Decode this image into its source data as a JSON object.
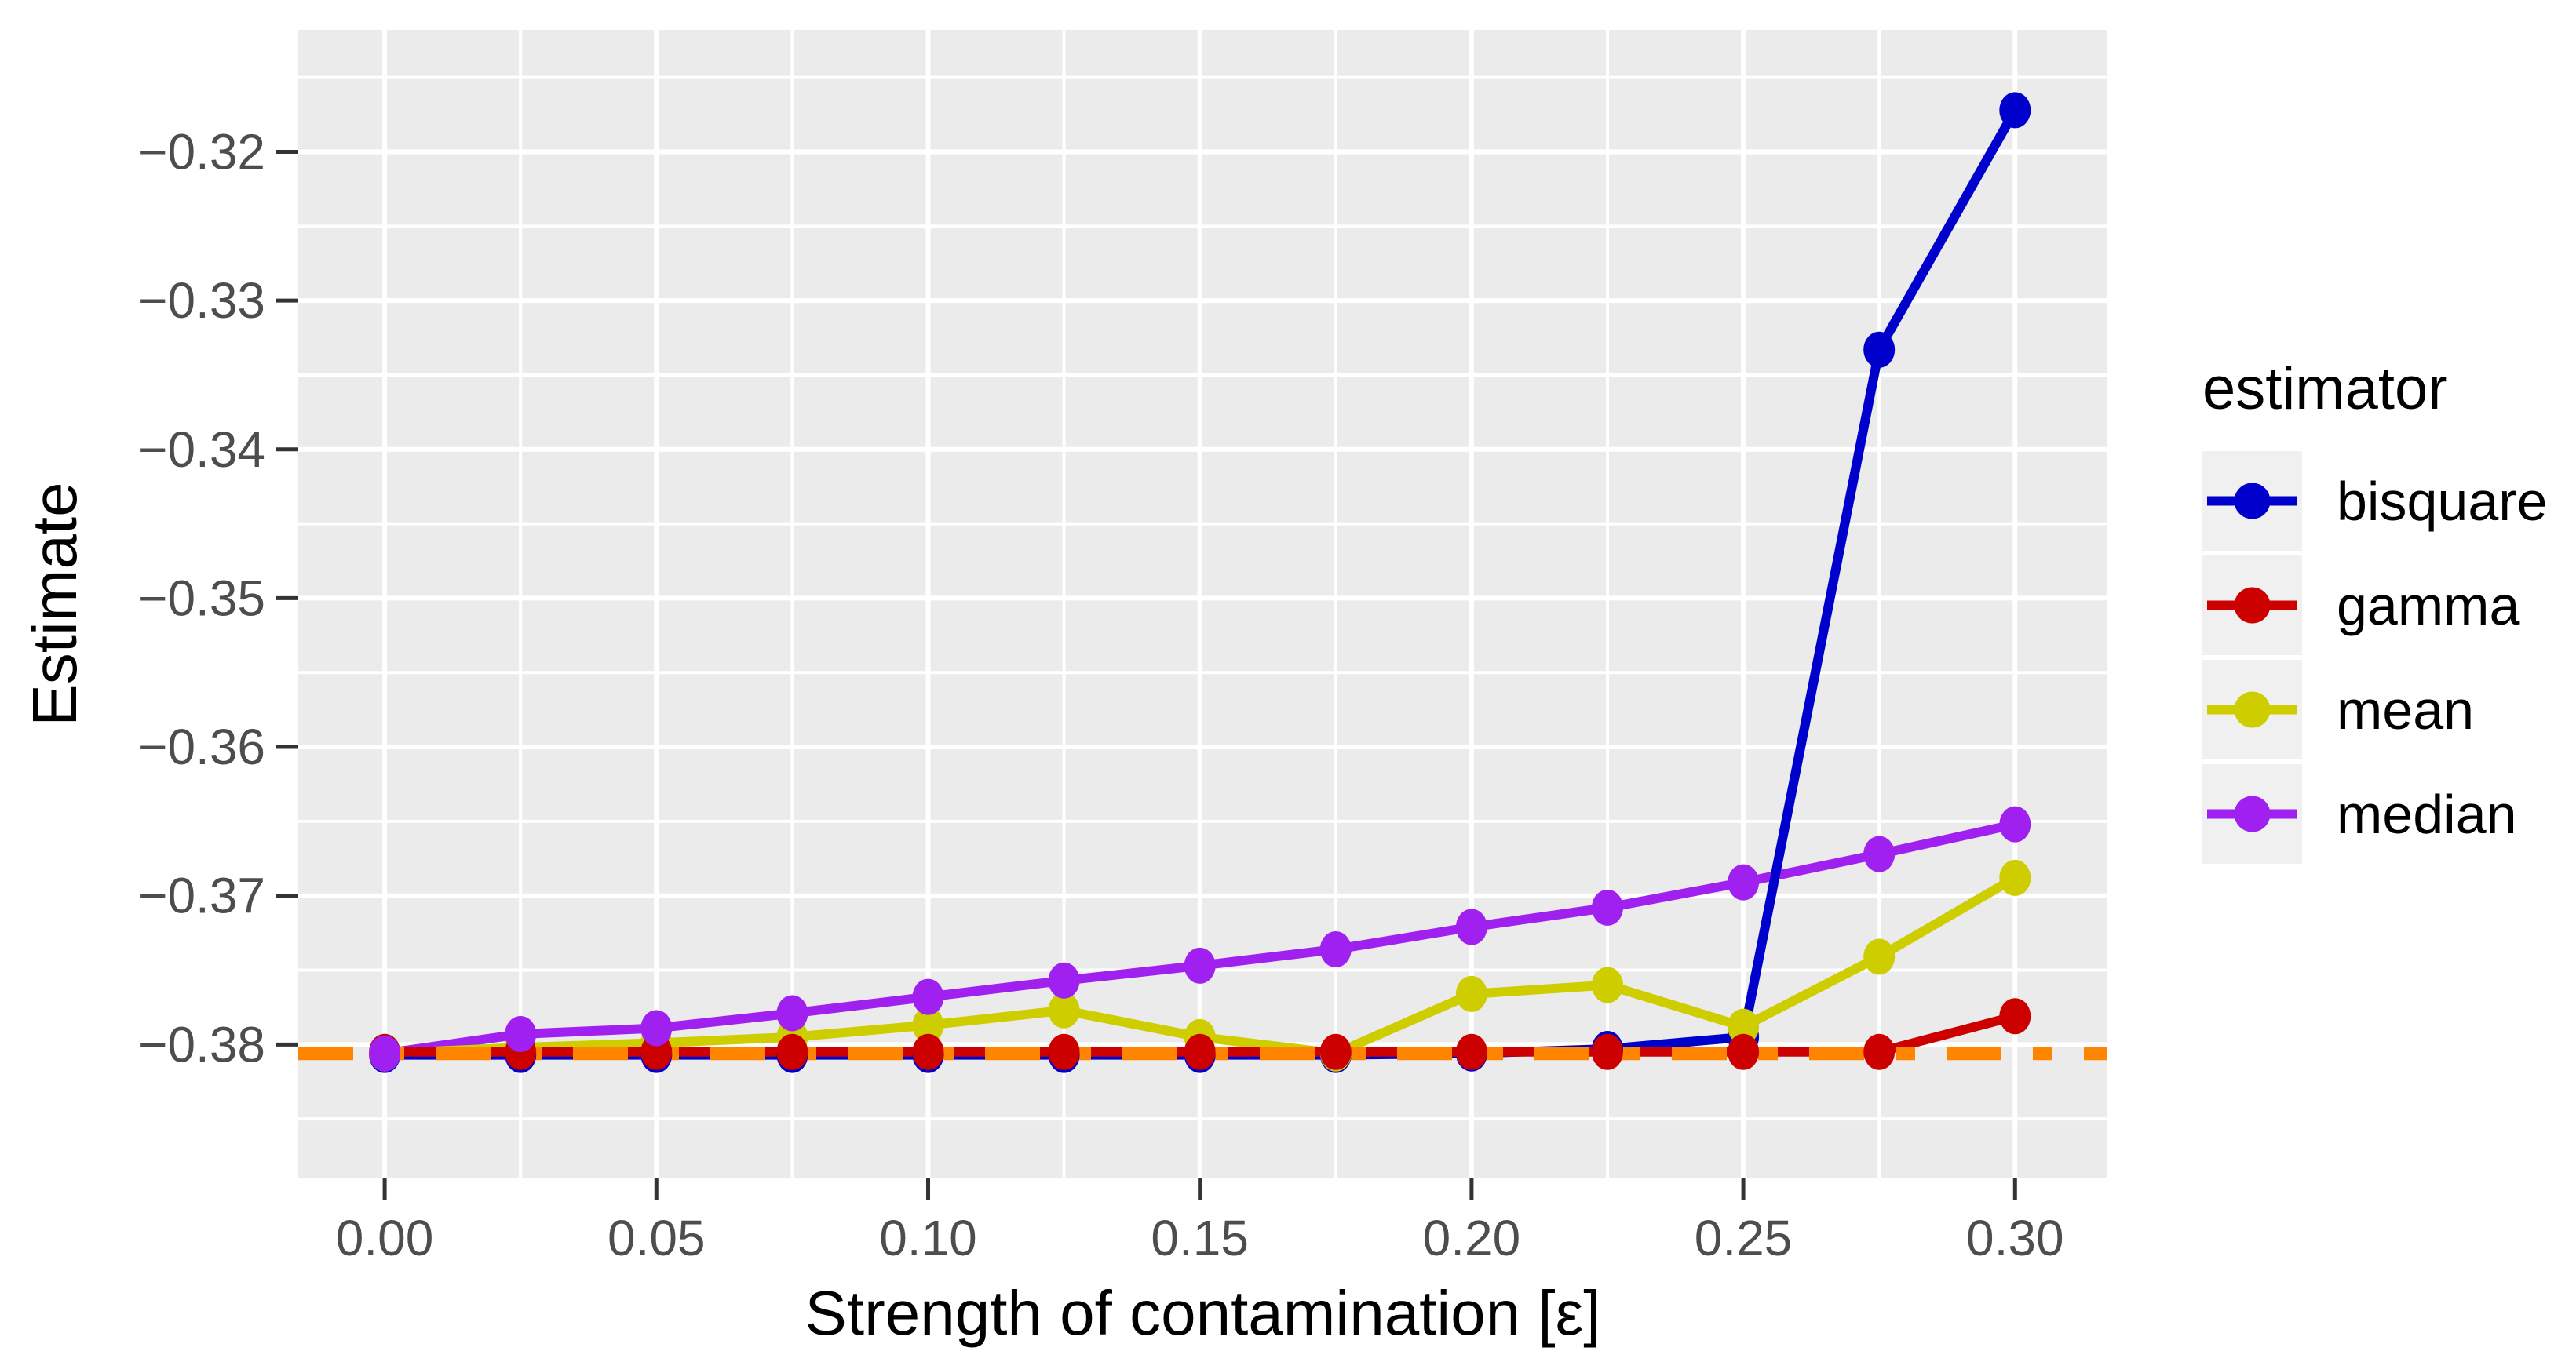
{
  "chart_data": {
    "type": "line",
    "title": "",
    "xlabel": "Strength of contamination [ε]",
    "ylabel": "Estimate",
    "legend_title": "estimator",
    "legend_position": "right",
    "grid": true,
    "x": [
      0.0,
      0.025,
      0.05,
      0.075,
      0.1,
      0.125,
      0.15,
      0.175,
      0.2,
      0.225,
      0.25,
      0.275,
      0.3
    ],
    "series": [
      {
        "name": "bisquare",
        "color": "#0000CD",
        "values": [
          -0.3807,
          -0.3807,
          -0.3807,
          -0.3807,
          -0.3807,
          -0.3807,
          -0.3807,
          -0.3807,
          -0.3806,
          -0.3803,
          -0.3795,
          -0.3333,
          -0.3172
        ]
      },
      {
        "name": "gamma",
        "color": "#CD0000",
        "values": [
          -0.3805,
          -0.3805,
          -0.3805,
          -0.3805,
          -0.3805,
          -0.3805,
          -0.3805,
          -0.3805,
          -0.3805,
          -0.3805,
          -0.3805,
          -0.3805,
          -0.3781
        ]
      },
      {
        "name": "mean",
        "color": "#CDCD00",
        "values": [
          -0.3806,
          -0.3802,
          -0.3799,
          -0.3795,
          -0.3787,
          -0.3777,
          -0.3795,
          -0.3806,
          -0.3766,
          -0.376,
          -0.3788,
          -0.3741,
          -0.3688
        ]
      },
      {
        "name": "median",
        "color": "#A020F0",
        "values": [
          -0.3806,
          -0.3793,
          -0.3789,
          -0.3779,
          -0.3768,
          -0.3757,
          -0.3747,
          -0.3736,
          -0.3721,
          -0.3708,
          -0.3691,
          -0.3672,
          -0.3652
        ]
      }
    ],
    "reference_line": {
      "y": -0.3806,
      "color": "#FF8400",
      "style": "twodash"
    },
    "x_ticks": {
      "values": [
        0.0,
        0.05,
        0.1,
        0.15,
        0.2,
        0.25,
        0.3
      ],
      "labels": [
        "0.00",
        "0.05",
        "0.10",
        "0.15",
        "0.20",
        "0.25",
        "0.30"
      ]
    },
    "y_ticks": {
      "values": [
        -0.32,
        -0.33,
        -0.34,
        -0.35,
        -0.36,
        -0.37,
        -0.38
      ],
      "labels": [
        "−0.32",
        "−0.33",
        "−0.34",
        "−0.35",
        "−0.36",
        "−0.37",
        "−0.38"
      ]
    },
    "x_minor": [
      0.025,
      0.075,
      0.125,
      0.175,
      0.225,
      0.275
    ],
    "y_minor": [
      -0.315,
      -0.325,
      -0.335,
      -0.345,
      -0.355,
      -0.365,
      -0.375,
      -0.385
    ],
    "xlim": [
      -0.0159,
      0.317
    ],
    "ylim": [
      -0.389,
      -0.3118
    ],
    "colors": {
      "panel_bg": "#EBEBEB",
      "grid": "#FFFFFF",
      "tick_label": "#4D4D4D",
      "tick_mark": "#333333",
      "axis_title": "#000000",
      "legend_key_bg": "#F0F0F0",
      "background": "#FFFFFF"
    }
  }
}
